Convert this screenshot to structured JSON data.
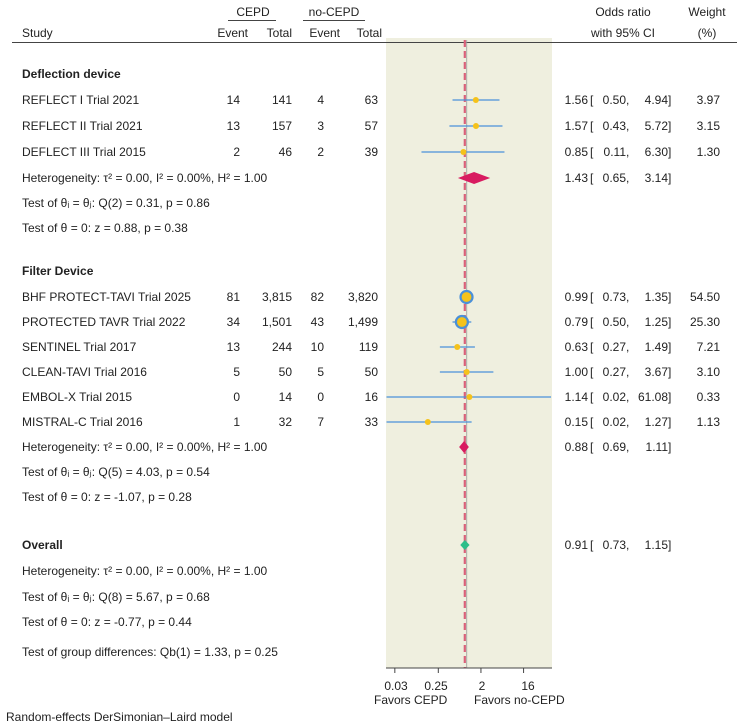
{
  "header": {
    "group1": "CEPD",
    "group2": "no-CEPD",
    "study": "Study",
    "event": "Event",
    "total": "Total",
    "or_line1": "Odds ratio",
    "or_line2": "with 95% CI",
    "w_line1": "Weight",
    "w_line2": "(%)"
  },
  "sections": [
    {
      "title": "Deflection device",
      "studies": [
        {
          "name": "REFLECT I Trial 2021",
          "e1": "14",
          "t1": "141",
          "e2": "4",
          "t2": "63",
          "or": "1.56",
          "lo": "0.50",
          "hi": "4.94",
          "weight": "3.97"
        },
        {
          "name": "REFLECT II Trial 2021",
          "e1": "13",
          "t1": "157",
          "e2": "3",
          "t2": "57",
          "or": "1.57",
          "lo": "0.43",
          "hi": "5.72",
          "weight": "3.15"
        },
        {
          "name": "DEFLECT III Trial 2015",
          "e1": "2",
          "t1": "46",
          "e2": "2",
          "t2": "39",
          "or": "0.85",
          "lo": "0.11",
          "hi": "6.30",
          "weight": "1.30"
        }
      ],
      "pooled": {
        "or": "1.43",
        "lo": "0.65",
        "hi": "3.14"
      },
      "heterogeneity": "Heterogeneity: τ² = 0.00, I² = 0.00%, H² = 1.00",
      "test_q": "Test of θᵢ = θⱼ: Q(2) = 0.31, p = 0.86",
      "test_z": "Test of θ = 0: z = 0.88, p = 0.38"
    },
    {
      "title": "Filter Device",
      "studies": [
        {
          "name": "BHF PROTECT-TAVI Trial 2025",
          "e1": "81",
          "t1": "3,815",
          "e2": "82",
          "t2": "3,820",
          "or": "0.99",
          "lo": "0.73",
          "hi": "1.35",
          "weight": "54.50"
        },
        {
          "name": "PROTECTED TAVR Trial 2022",
          "e1": "34",
          "t1": "1,501",
          "e2": "43",
          "t2": "1,499",
          "or": "0.79",
          "lo": "0.50",
          "hi": "1.25",
          "weight": "25.30"
        },
        {
          "name": "SENTINEL Trial 2017",
          "e1": "13",
          "t1": "244",
          "e2": "10",
          "t2": "119",
          "or": "0.63",
          "lo": "0.27",
          "hi": "1.49",
          "weight": "7.21"
        },
        {
          "name": "CLEAN-TAVI Trial 2016",
          "e1": "5",
          "t1": "50",
          "e2": "5",
          "t2": "50",
          "or": "1.00",
          "lo": "0.27",
          "hi": "3.67",
          "weight": "3.10"
        },
        {
          "name": "EMBOL-X Trial 2015",
          "e1": "0",
          "t1": "14",
          "e2": "0",
          "t2": "16",
          "or": "1.14",
          "lo": "0.02",
          "hi": "61.08",
          "weight": "0.33"
        },
        {
          "name": "MISTRAL-C Trial 2016",
          "e1": "1",
          "t1": "32",
          "e2": "7",
          "t2": "33",
          "or": "0.15",
          "lo": "0.02",
          "hi": "1.27",
          "weight": "1.13"
        }
      ],
      "pooled": {
        "or": "0.88",
        "lo": "0.69",
        "hi": "1.11"
      },
      "heterogeneity": "Heterogeneity: τ² = 0.00, I² = 0.00%, H² = 1.00",
      "test_q": "Test of θᵢ = θⱼ: Q(5) = 4.03, p = 0.54",
      "test_z": "Test of θ = 0: z = -1.07, p = 0.28"
    }
  ],
  "overall": {
    "title": "Overall",
    "or": "0.91",
    "lo": "0.73",
    "hi": "1.15",
    "heterogeneity": "Heterogeneity: τ² = 0.00, I² = 0.00%, H² = 1.00",
    "test_q": "Test of θᵢ = θⱼ: Q(8) = 5.67, p = 0.68",
    "test_z": "Test of θ = 0: z = -0.77, p = 0.44",
    "group_diff": "Test of group differences: Qb(1) = 1.33, p = 0.25"
  },
  "footer": {
    "ticks": [
      "0.03",
      "0.25",
      "2",
      "16"
    ],
    "favors_left": "Favors CEPD",
    "favors_right": "Favors no-CEPD",
    "model_note": "Random-effects DerSimonian–Laird model"
  },
  "chart_data": {
    "type": "forest",
    "xscale": "log2",
    "xlim": [
      0.0195,
      64
    ],
    "reference_line": 1,
    "overall_line": 0.91,
    "colors": {
      "study_marker": "#f5c21b",
      "ci": "#4a90d9",
      "subgroup_diamond": "#d81b60",
      "overall_diamond": "#2bbf8a",
      "band": "#efefdf",
      "ref_line": "#d9607a"
    },
    "points": [
      {
        "label": "REFLECT I Trial 2021",
        "or": 1.56,
        "lo": 0.5,
        "hi": 4.94,
        "weight": 3.97
      },
      {
        "label": "REFLECT II Trial 2021",
        "or": 1.57,
        "lo": 0.43,
        "hi": 5.72,
        "weight": 3.15
      },
      {
        "label": "DEFLECT III Trial 2015",
        "or": 0.85,
        "lo": 0.11,
        "hi": 6.3,
        "weight": 1.3
      },
      {
        "label": "Deflection device pooled",
        "or": 1.43,
        "lo": 0.65,
        "hi": 3.14,
        "diamond": "subgroup"
      },
      {
        "label": "BHF PROTECT-TAVI Trial 2025",
        "or": 0.99,
        "lo": 0.73,
        "hi": 1.35,
        "weight": 54.5
      },
      {
        "label": "PROTECTED TAVR Trial 2022",
        "or": 0.79,
        "lo": 0.5,
        "hi": 1.25,
        "weight": 25.3
      },
      {
        "label": "SENTINEL Trial 2017",
        "or": 0.63,
        "lo": 0.27,
        "hi": 1.49,
        "weight": 7.21
      },
      {
        "label": "CLEAN-TAVI Trial 2016",
        "or": 1.0,
        "lo": 0.27,
        "hi": 3.67,
        "weight": 3.1
      },
      {
        "label": "EMBOL-X Trial 2015",
        "or": 1.14,
        "lo": 0.02,
        "hi": 61.08,
        "weight": 0.33
      },
      {
        "label": "MISTRAL-C Trial 2016",
        "or": 0.15,
        "lo": 0.02,
        "hi": 1.27,
        "weight": 1.13
      },
      {
        "label": "Filter Device pooled",
        "or": 0.88,
        "lo": 0.69,
        "hi": 1.11,
        "diamond": "subgroup"
      },
      {
        "label": "Overall",
        "or": 0.91,
        "lo": 0.73,
        "hi": 1.15,
        "diamond": "overall"
      }
    ]
  }
}
